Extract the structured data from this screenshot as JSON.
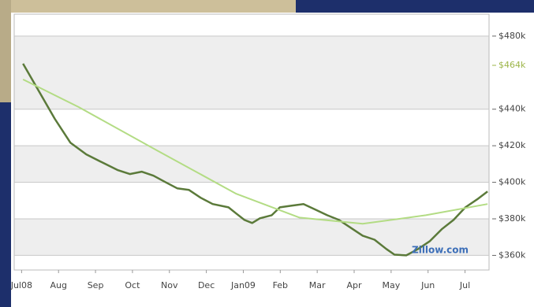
{
  "chart_data": {
    "type": "line",
    "xlim": [
      -0.2,
      12.65
    ],
    "xticks": [
      {
        "value": 0,
        "label": "Jul08"
      },
      {
        "value": 1,
        "label": "Aug"
      },
      {
        "value": 2,
        "label": "Sep"
      },
      {
        "value": 3,
        "label": "Oct"
      },
      {
        "value": 4,
        "label": "Nov"
      },
      {
        "value": 5,
        "label": "Dec"
      },
      {
        "value": 6,
        "label": "Jan09"
      },
      {
        "value": 7,
        "label": "Feb"
      },
      {
        "value": 8,
        "label": "Mar"
      },
      {
        "value": 9,
        "label": "Apr"
      },
      {
        "value": 10,
        "label": "May"
      },
      {
        "value": 11,
        "label": "Jun"
      },
      {
        "value": 12,
        "label": "Jul"
      }
    ],
    "ylim": [
      352,
      492
    ],
    "yticks": [
      {
        "value": 360,
        "label": "$360k"
      },
      {
        "value": 380,
        "label": "$380k"
      },
      {
        "value": 400,
        "label": "$400k"
      },
      {
        "value": 420,
        "label": "$420k"
      },
      {
        "value": 440,
        "label": "$440k"
      },
      {
        "value": 480,
        "label": "$480k"
      }
    ],
    "annotations": [
      {
        "value": 464,
        "label": "$464k",
        "color": "#9cb548"
      }
    ],
    "source_label": "Zillow.com",
    "grid": true,
    "series": [
      {
        "color": "#5b7a3a",
        "x": [
          0.04,
          0.47,
          0.9,
          1.32,
          1.75,
          2.18,
          2.61,
          2.93,
          3.25,
          3.57,
          3.89,
          4.21,
          4.53,
          4.85,
          5.17,
          5.6,
          5.81,
          6.03,
          6.24,
          6.45,
          6.77,
          6.99,
          7.31,
          7.63,
          7.95,
          8.27,
          8.59,
          8.91,
          9.23,
          9.55,
          9.87,
          10.09,
          10.41,
          10.73,
          11.05,
          11.37,
          11.69,
          12.01,
          12.33,
          12.61
        ],
        "values": [
          464.9,
          449.8,
          434.7,
          421.7,
          415.3,
          410.9,
          406.6,
          404.5,
          405.8,
          403.6,
          400.1,
          396.7,
          395.8,
          391.5,
          388.1,
          386.3,
          382.9,
          379.4,
          377.7,
          380.3,
          382.0,
          386.3,
          387.2,
          388.1,
          385.1,
          382.0,
          379.4,
          375.1,
          370.8,
          368.6,
          363.5,
          360.4,
          360.0,
          363.5,
          367.8,
          374.3,
          379.4,
          386.3,
          390.7,
          395.0
        ]
      },
      {
        "color": "#b3dc84",
        "x": [
          0.04,
          1.54,
          3.67,
          5.81,
          7.52,
          9.23,
          10.94,
          12.61
        ],
        "values": [
          456.3,
          441.2,
          417.4,
          393.7,
          380.7,
          377.3,
          382.0,
          388.1
        ]
      }
    ]
  }
}
